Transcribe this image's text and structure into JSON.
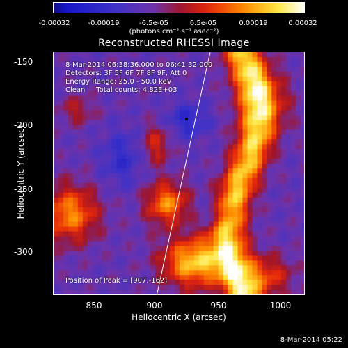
{
  "colorbar": {
    "ticks": [
      "-0.00032",
      "-0.00019",
      "-6.5e-05",
      "6.5e-05",
      "0.00019",
      "0.00032"
    ],
    "units": "(photons cm⁻² s⁻¹ asec⁻²)"
  },
  "chart_data": {
    "type": "heatmap",
    "title": "Reconstructed RHESSI Image",
    "xlabel": "Heliocentric X (arcsec)",
    "ylabel": "Heliocentric Y (arcsec)",
    "xlim": [
      818,
      1025
    ],
    "ylim": [
      -335,
      -143
    ],
    "xticks": [
      "850",
      "900",
      "950",
      "1000"
    ],
    "xtick_values": [
      850,
      900,
      950,
      1000
    ],
    "yticks": [
      "-150",
      "-200",
      "-250",
      "-300"
    ],
    "ytick_values": [
      -150,
      -200,
      -250,
      -300
    ],
    "zlim": [
      -0.00032,
      0.00032
    ],
    "colormap": "rhessi-spectral"
  },
  "info": {
    "time_range": "8-Mar-2014 06:38:36.000 to 06:41:32.000",
    "detectors": "Detectors: 3F 5F 6F 7F 8F 9F, Att 0",
    "energy": "Energy Range: 25.0 - 50.0 keV",
    "clean": "Clean     Total counts: 4.82E+03",
    "peak": "Position of Peak = [907,-162]"
  },
  "timestamp": "8-Mar-2014 05:22"
}
